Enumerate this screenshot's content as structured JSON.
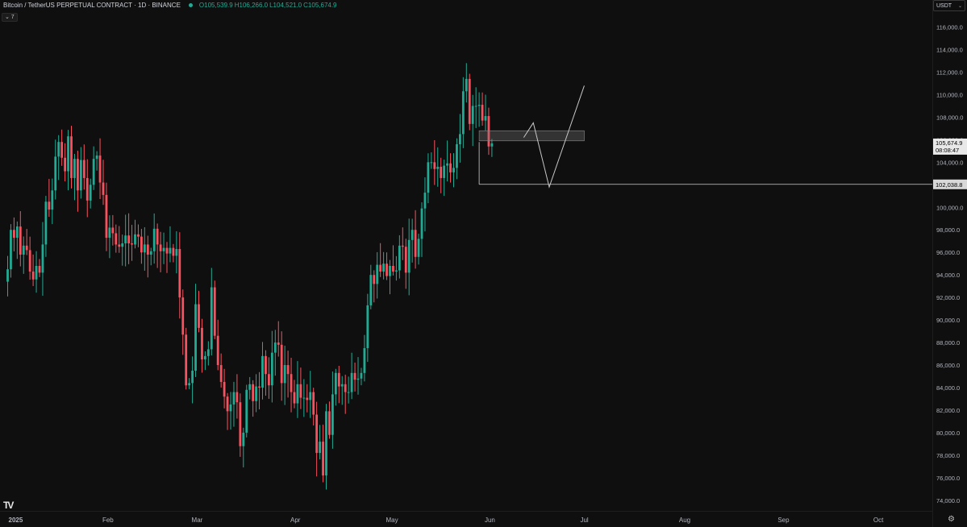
{
  "header": {
    "symbol": "Bitcoin / TetherUS PERPETUAL CONTRACT · 1D · BINANCE",
    "open": "O105,539.9",
    "high": "H106,266.0",
    "low": "L104,521.0",
    "close": "C105,674.9",
    "indicator_toggle": "⌄ 7"
  },
  "currency_select": {
    "value": "USDT"
  },
  "colors": {
    "up": "#22ab94",
    "down": "#f7525f",
    "bg": "#0f0f0f",
    "text": "#b2b5be",
    "line": "#c8c8c8"
  },
  "icons": {
    "logo": "tradingview-logo-icon",
    "settings": "settings-icon"
  },
  "chart_data": {
    "type": "candlestick",
    "title": "Bitcoin / TetherUS PERPETUAL CONTRACT · 1D · BINANCE",
    "y_ticks": [
      116000,
      114000,
      112000,
      110000,
      108000,
      106000,
      104000,
      102000,
      100000,
      98000,
      96000,
      94000,
      92000,
      90000,
      88000,
      86000,
      84000,
      82000,
      80000,
      78000,
      76000,
      74000
    ],
    "y_tick_labels": [
      "116,000.0",
      "114,000.0",
      "112,000.0",
      "110,000.0",
      "108,000.0",
      "106,000.0",
      "104,000.0",
      "102,000.0",
      "100,000.0",
      "98,000.0",
      "96,000.0",
      "94,000.0",
      "92,000.0",
      "90,000.0",
      "88,000.0",
      "86,000.0",
      "84,000.0",
      "82,000.0",
      "80,000.0",
      "78,000.0",
      "76,000.0",
      "74,000.0"
    ],
    "ylim": [
      73200,
      117400
    ],
    "x_labels": [
      "2025",
      "Feb",
      "Mar",
      "Apr",
      "May",
      "Jun",
      "Jul",
      "Aug",
      "Sep",
      "Oct"
    ],
    "x_label_days": [
      0,
      31,
      59,
      90,
      120,
      151,
      181,
      212,
      243,
      273
    ],
    "x_start_date": "2025-01-01",
    "x_end_date": "2025-10-10",
    "current_price": {
      "value": 105674.9,
      "label": "105,674.9",
      "countdown": "08:08:47"
    },
    "level_line": {
      "value": 102038.8,
      "label": "102,038.8",
      "from_day": 148
    },
    "zone": {
      "from_day": 148,
      "to_day": 181,
      "low": 105900,
      "high": 106800
    },
    "projection_path": [
      {
        "day": 162,
        "value": 106200
      },
      {
        "day": 165,
        "value": 107500
      },
      {
        "day": 170,
        "value": 101800
      },
      {
        "day": 181,
        "value": 110800
      }
    ],
    "closes": [
      94500,
      98000,
      97300,
      98300,
      95800,
      96600,
      96200,
      94300,
      93600,
      94800,
      94200,
      96700,
      100500,
      99800,
      101500,
      104500,
      105800,
      104400,
      103200,
      106300,
      102600,
      104300,
      101500,
      104200,
      102600,
      100600,
      102000,
      104300,
      104600,
      102200,
      101100,
      97300,
      98200,
      97700,
      96700,
      96500,
      96800,
      97500,
      96800,
      96700,
      97600,
      97400,
      96000,
      96700,
      95800,
      96100,
      98100,
      96700,
      96100,
      96400,
      95900,
      96400,
      95700,
      96300,
      92000,
      88700,
      84200,
      84400,
      85500,
      91400,
      89300,
      86500,
      86800,
      87400,
      92900,
      88600,
      86000,
      84500,
      83200,
      81900,
      82500,
      83600,
      82700,
      78800,
      80000,
      83800,
      84300,
      82800,
      84100,
      84000,
      86800,
      85200,
      84200,
      87100,
      88000,
      87800,
      84400,
      86000,
      85200,
      83600,
      82600,
      84300,
      83100,
      83100,
      82900,
      83600,
      81600,
      78200,
      79200,
      76200,
      81900,
      79800,
      83400,
      85300,
      84100,
      84300,
      83600,
      83600,
      85300,
      84700,
      84800,
      85300,
      87500,
      91300,
      94000,
      93200,
      94900,
      94300,
      95000,
      93900,
      94800,
      94300,
      94400,
      96600,
      96500,
      94200,
      97100,
      98000,
      95600,
      97200,
      99900,
      101300,
      104000,
      104000,
      103400,
      103600,
      102600,
      103700,
      103900,
      103100,
      103500,
      105600,
      106500,
      110300,
      111400,
      107400,
      109000,
      109000,
      109100,
      107700,
      108100,
      105400,
      105675
    ]
  }
}
